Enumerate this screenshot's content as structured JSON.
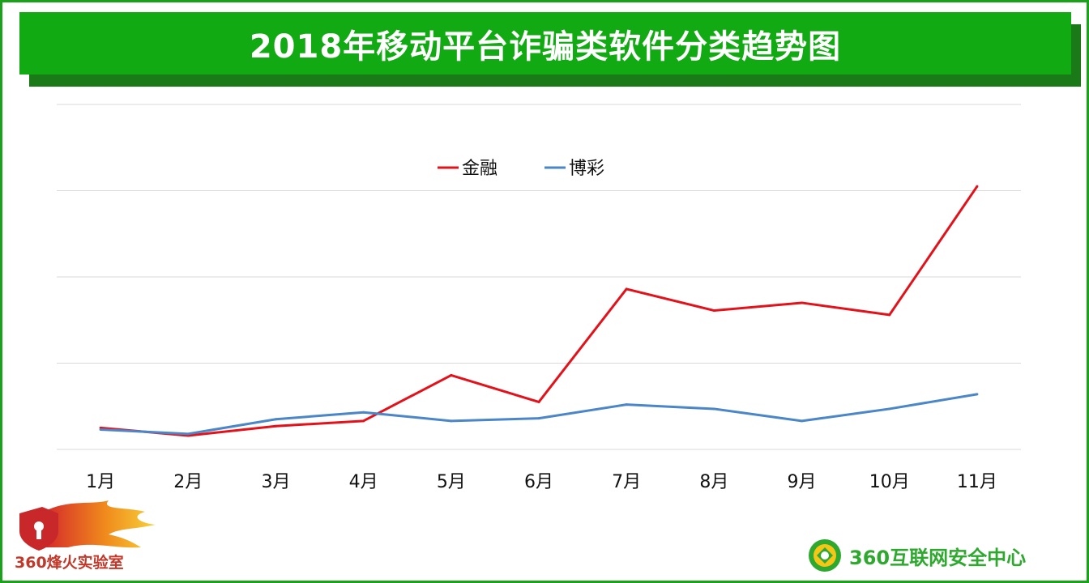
{
  "title": "2018年移动平台诈骗类软件分类趋势图",
  "colors": {
    "banner": "#12aa12",
    "banner_shadow": "#1b7a18",
    "finance": "#e3121a",
    "gambling": "#4a86c8",
    "grid": "#d9d9d9"
  },
  "chart_data": {
    "type": "line",
    "title": "",
    "xlabel": "",
    "ylabel": "",
    "categories": [
      "1月",
      "2月",
      "3月",
      "4月",
      "5月",
      "6月",
      "7月",
      "8月",
      "9月",
      "10月",
      "11月"
    ],
    "ylim": [
      0,
      4
    ],
    "y_ticks_visible": false,
    "grid": true,
    "legend": "top-center",
    "series": [
      {
        "name": "金融",
        "color": "#e3121a",
        "values": [
          0.25,
          0.16,
          0.27,
          0.33,
          0.86,
          0.55,
          1.86,
          1.61,
          1.7,
          1.56,
          3.05
        ]
      },
      {
        "name": "博彩",
        "color": "#4a86c8",
        "values": [
          0.23,
          0.18,
          0.35,
          0.43,
          0.33,
          0.36,
          0.52,
          0.47,
          0.33,
          0.47,
          0.64
        ]
      }
    ]
  },
  "logos": {
    "left_text": "360烽火实验室",
    "right_text": "360互联网安全中心"
  }
}
